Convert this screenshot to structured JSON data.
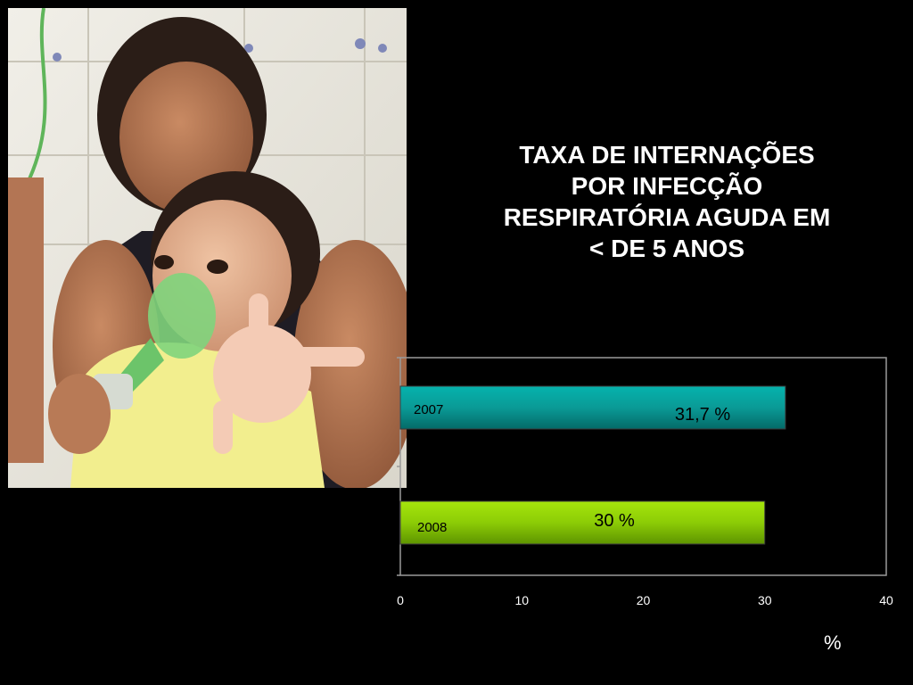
{
  "title_lines": [
    "TAXA DE INTERNAÇÕES",
    "POR INFECÇÃO",
    "RESPIRATÓRIA AGUDA EM",
    "< DE 5 ANOS"
  ],
  "photo": {
    "subject": "mother-holding-child-with-nebulizer-mask"
  },
  "chart_data": {
    "type": "bar",
    "orientation": "horizontal",
    "categories": [
      "2007",
      "2008"
    ],
    "values": [
      31.7,
      30
    ],
    "data_labels": [
      "31,7 %",
      "30 %"
    ],
    "colors": [
      "#0a9a96",
      "#8ccc06"
    ],
    "xlim": [
      0,
      40
    ],
    "xticks": [
      "0",
      "10",
      "20",
      "30",
      "40"
    ],
    "xlabel": "%",
    "grid": false,
    "legend": "none"
  }
}
